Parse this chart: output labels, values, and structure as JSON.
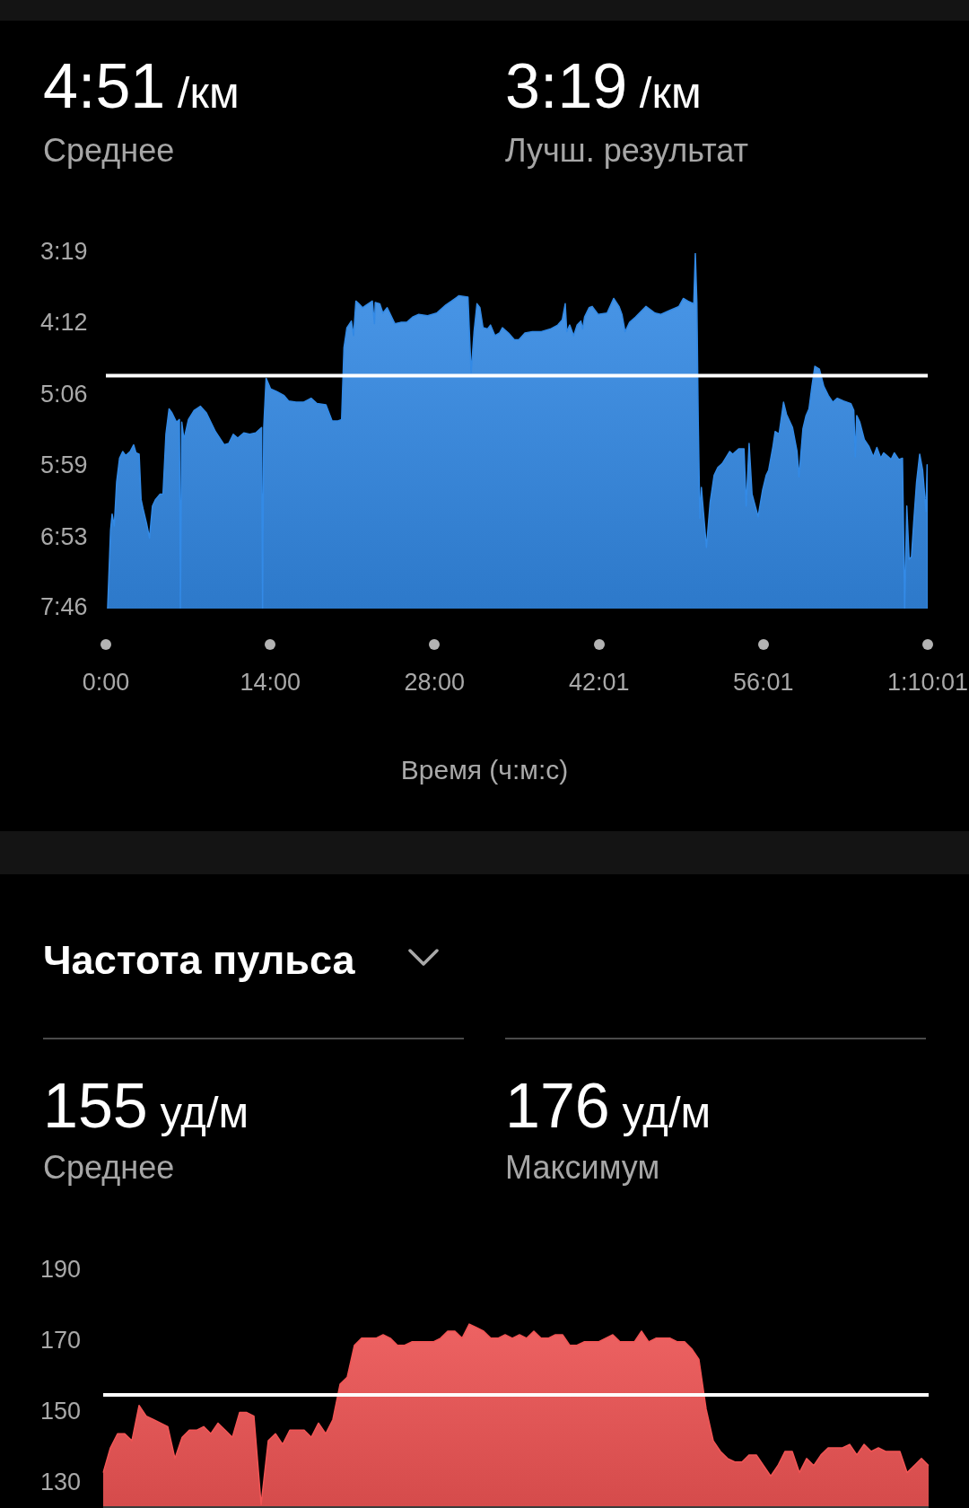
{
  "chart_data": [
    {
      "type": "area",
      "x": [
        9,
        24,
        32,
        43,
        55,
        70,
        86,
        101,
        124,
        142,
        154,
        170,
        180,
        190,
        208,
        223,
        238,
        254,
        277,
        292,
        307,
        323,
        338,
        361,
        376,
        381,
        388,
        399,
        422,
        452,
        483,
        514,
        560,
        605,
        628,
        651,
        674,
        705,
        735,
        766,
        796,
        801,
        807,
        819,
        842,
        873,
        911,
        934,
        972,
        1010,
        1049,
        1079,
        1125,
        1156,
        1186,
        1205,
        1217,
        1232,
        1255,
        1266,
        1278,
        1293,
        1312,
        1331,
        1362,
        1373,
        1377,
        1400,
        1416,
        1438,
        1477,
        1507,
        1538,
        1568,
        1599,
        1645,
        1691,
        1737,
        1767,
        1805,
        1851,
        1867,
        1882,
        1897,
        1912,
        1928,
        1951,
        1966,
        1989,
        2012,
        2027,
        2058,
        2088,
        2111,
        2142,
        2180,
        2226,
        2272,
        2310,
        2333,
        2348,
        2356,
        2371,
        2391,
        2409,
        2428,
        2437,
        2447,
        2470,
        2486,
        2516,
        2562,
        2596,
        2623,
        2638,
        2654,
        2677,
        2707,
        2761,
        2807,
        2837,
        2883,
        2929,
        2952,
        2975,
        3005,
        3013,
        3021,
        3028,
        3036,
        3044,
        3070,
        3089,
        3109,
        3128,
        3151,
        3189,
        3204,
        3235,
        3262,
        3273,
        3288,
        3303,
        3334,
        3357,
        3375,
        3388,
        3410,
        3421,
        3441,
        3464,
        3479,
        3510,
        3533,
        3543,
        3563,
        3579,
        3594,
        3609,
        3624,
        3647,
        3670,
        3693,
        3716,
        3739,
        3770,
        3808,
        3823,
        3831,
        3838,
        3854,
        3877,
        3900,
        3923,
        3941,
        3961,
        3976,
        3999,
        4014,
        4030,
        4053,
        4072,
        4083,
        4094,
        4106,
        4118,
        4129,
        4144,
        4160,
        4175,
        4185,
        4192,
        4198,
        4201
      ],
      "values": [
        466,
        407,
        395,
        404,
        371,
        353,
        348,
        351,
        348,
        343,
        349,
        350,
        384,
        391,
        402,
        413,
        389,
        384,
        380,
        380,
        335,
        316,
        319,
        326,
        324,
        466,
        326,
        339,
        324,
        317,
        314,
        319,
        333,
        343,
        342,
        335,
        338,
        334,
        335,
        334,
        330,
        466,
        330,
        293,
        301,
        303,
        306,
        310,
        311,
        311,
        308,
        312,
        313,
        325,
        325,
        324,
        270,
        255,
        250,
        261,
        235,
        237,
        240,
        238,
        235,
        252,
        236,
        237,
        244,
        240,
        252,
        251,
        251,
        247,
        245,
        246,
        244,
        238,
        235,
        231,
        232,
        289,
        258,
        237,
        240,
        255,
        256,
        253,
        261,
        259,
        255,
        259,
        264,
        264,
        259,
        258,
        258,
        256,
        253,
        249,
        237,
        258,
        253,
        261,
        253,
        250,
        256,
        247,
        240,
        239,
        245,
        244,
        233,
        239,
        245,
        258,
        251,
        247,
        239,
        244,
        245,
        242,
        239,
        233,
        235,
        237,
        199,
        236,
        326,
        398,
        375,
        420,
        386,
        366,
        360,
        357,
        348,
        350,
        346,
        346,
        389,
        342,
        380,
        397,
        377,
        366,
        362,
        344,
        333,
        335,
        311,
        320,
        330,
        348,
        367,
        331,
        321,
        316,
        299,
        284,
        286,
        299,
        306,
        311,
        308,
        310,
        312,
        317,
        352,
        321,
        326,
        339,
        344,
        352,
        345,
        353,
        349,
        352,
        354,
        349,
        354,
        353,
        466,
        389,
        429,
        427,
        402,
        371,
        350,
        362,
        380,
        393,
        358,
        466
      ],
      "color": "#338ae6",
      "xlabel": "Время (ч:м:с)",
      "xlim": [
        0,
        4201
      ],
      "xticks": [
        {
          "value": 0,
          "label": "0:00"
        },
        {
          "value": 840,
          "label": "14:00"
        },
        {
          "value": 1680,
          "label": "28:00"
        },
        {
          "value": 2521,
          "label": "42:01"
        },
        {
          "value": 3361,
          "label": "56:01"
        },
        {
          "value": 4201,
          "label": "1:10:01"
        }
      ],
      "ylim": [
        466,
        199
      ],
      "yticks": [
        {
          "value": 199,
          "label": "3:19"
        },
        {
          "value": 252,
          "label": "4:12"
        },
        {
          "value": 306,
          "label": "5:06"
        },
        {
          "value": 359,
          "label": "5:59"
        },
        {
          "value": 413,
          "label": "6:53"
        },
        {
          "value": 466,
          "label": "7:46"
        }
      ],
      "ref_lines": [
        {
          "axis": "y",
          "value": 291,
          "color": "#ffffff"
        }
      ],
      "annotations": [
        "4:51 /км",
        "Среднее",
        "3:19 /км",
        "Лучш. результат"
      ]
    },
    {
      "type": "area",
      "title": "Частота пульса",
      "categories": [
        null,
        null,
        null,
        null,
        null,
        null,
        null,
        null,
        null,
        null,
        null,
        null,
        null,
        null,
        null,
        null,
        null,
        null,
        null,
        null,
        null,
        null,
        null,
        null,
        null,
        null,
        null,
        null,
        null,
        null,
        null,
        null,
        null,
        null,
        null,
        null,
        null,
        null,
        null,
        null,
        null,
        null,
        null,
        null,
        null,
        null,
        null,
        null,
        null,
        null,
        null,
        null,
        null,
        null,
        null,
        null,
        null,
        null,
        null,
        null,
        null,
        null,
        null,
        null,
        null,
        null,
        null,
        null,
        null,
        null,
        null,
        null,
        null,
        null,
        null,
        null,
        null,
        null,
        null,
        null,
        null,
        null,
        null,
        null,
        null,
        null,
        null,
        null,
        null,
        null,
        null,
        null,
        null,
        null,
        null,
        null,
        null,
        null,
        null,
        null,
        null,
        null,
        null,
        null,
        null,
        null,
        null,
        null,
        null,
        null,
        null,
        null,
        null,
        null,
        null,
        null
      ],
      "values": [
        133,
        140,
        144,
        144,
        142,
        152,
        149,
        148,
        147,
        146,
        137,
        143,
        145,
        145,
        146,
        144,
        147,
        145,
        143,
        150,
        150,
        149,
        124,
        142,
        144,
        141,
        145,
        145,
        145,
        143,
        147,
        144,
        148,
        158,
        160,
        169,
        171,
        171,
        171,
        172,
        171,
        169,
        169,
        170,
        170,
        170,
        170,
        171,
        173,
        173,
        171,
        175,
        174,
        173,
        171,
        171,
        172,
        171,
        172,
        171,
        173,
        171,
        171,
        172,
        172,
        169,
        169,
        170,
        170,
        170,
        171,
        172,
        170,
        170,
        170,
        173,
        170,
        171,
        171,
        171,
        170,
        170,
        168,
        165,
        151,
        142,
        139,
        137,
        136,
        136,
        138,
        138,
        135,
        132,
        135,
        139,
        139,
        133,
        137,
        135,
        138,
        140,
        140,
        140,
        141,
        138,
        141,
        139,
        140,
        139,
        139,
        139,
        133,
        135,
        137,
        135
      ],
      "color": "#f25555",
      "ylim": [
        123,
        190
      ],
      "yticks": [
        130,
        150,
        170,
        190
      ],
      "tick_labels": "y",
      "ref_lines": [
        {
          "axis": "y",
          "value": 155,
          "color": "#ffffff"
        }
      ],
      "annotations": [
        "155 уд/м",
        "Среднее",
        "176 уд/м",
        "Максимум"
      ]
    }
  ]
}
